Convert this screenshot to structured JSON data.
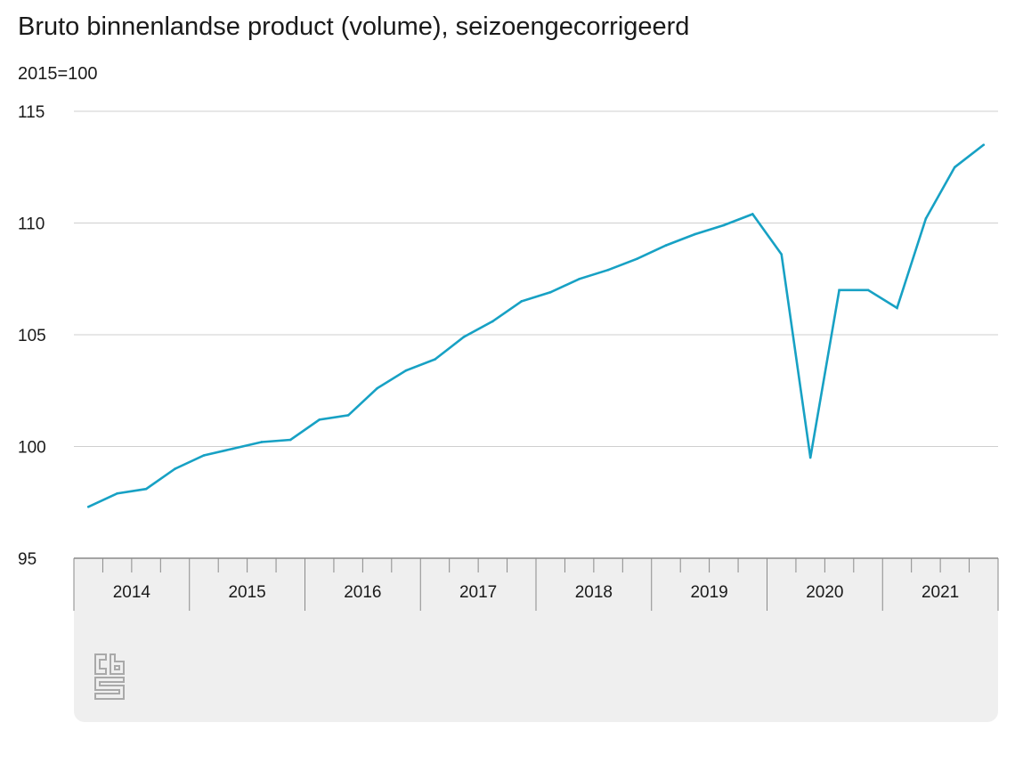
{
  "chart_data": {
    "type": "line",
    "title": "Bruto binnenlandse product (volume), seizoengecorrigeerd",
    "subtitle": "2015=100",
    "xlabel": "",
    "ylabel": "",
    "ylim": [
      95,
      115
    ],
    "yticks": [
      95,
      100,
      105,
      110,
      115
    ],
    "years": [
      "2014",
      "2015",
      "2016",
      "2017",
      "2018",
      "2019",
      "2020",
      "2021"
    ],
    "series": [
      {
        "name": "Bbp (volume), seizoengecorrigeerd",
        "color": "#17a1c4",
        "values": [
          97.3,
          97.9,
          98.1,
          99.0,
          99.6,
          99.9,
          100.2,
          100.3,
          101.2,
          101.4,
          102.6,
          103.4,
          103.9,
          104.9,
          105.6,
          106.5,
          106.9,
          107.5,
          107.9,
          108.4,
          109.0,
          109.5,
          109.9,
          110.4,
          108.6,
          99.5,
          107.0,
          107.0,
          106.2,
          110.2,
          112.5,
          113.5
        ]
      }
    ]
  },
  "logo": {
    "name": "cbs-logo"
  }
}
